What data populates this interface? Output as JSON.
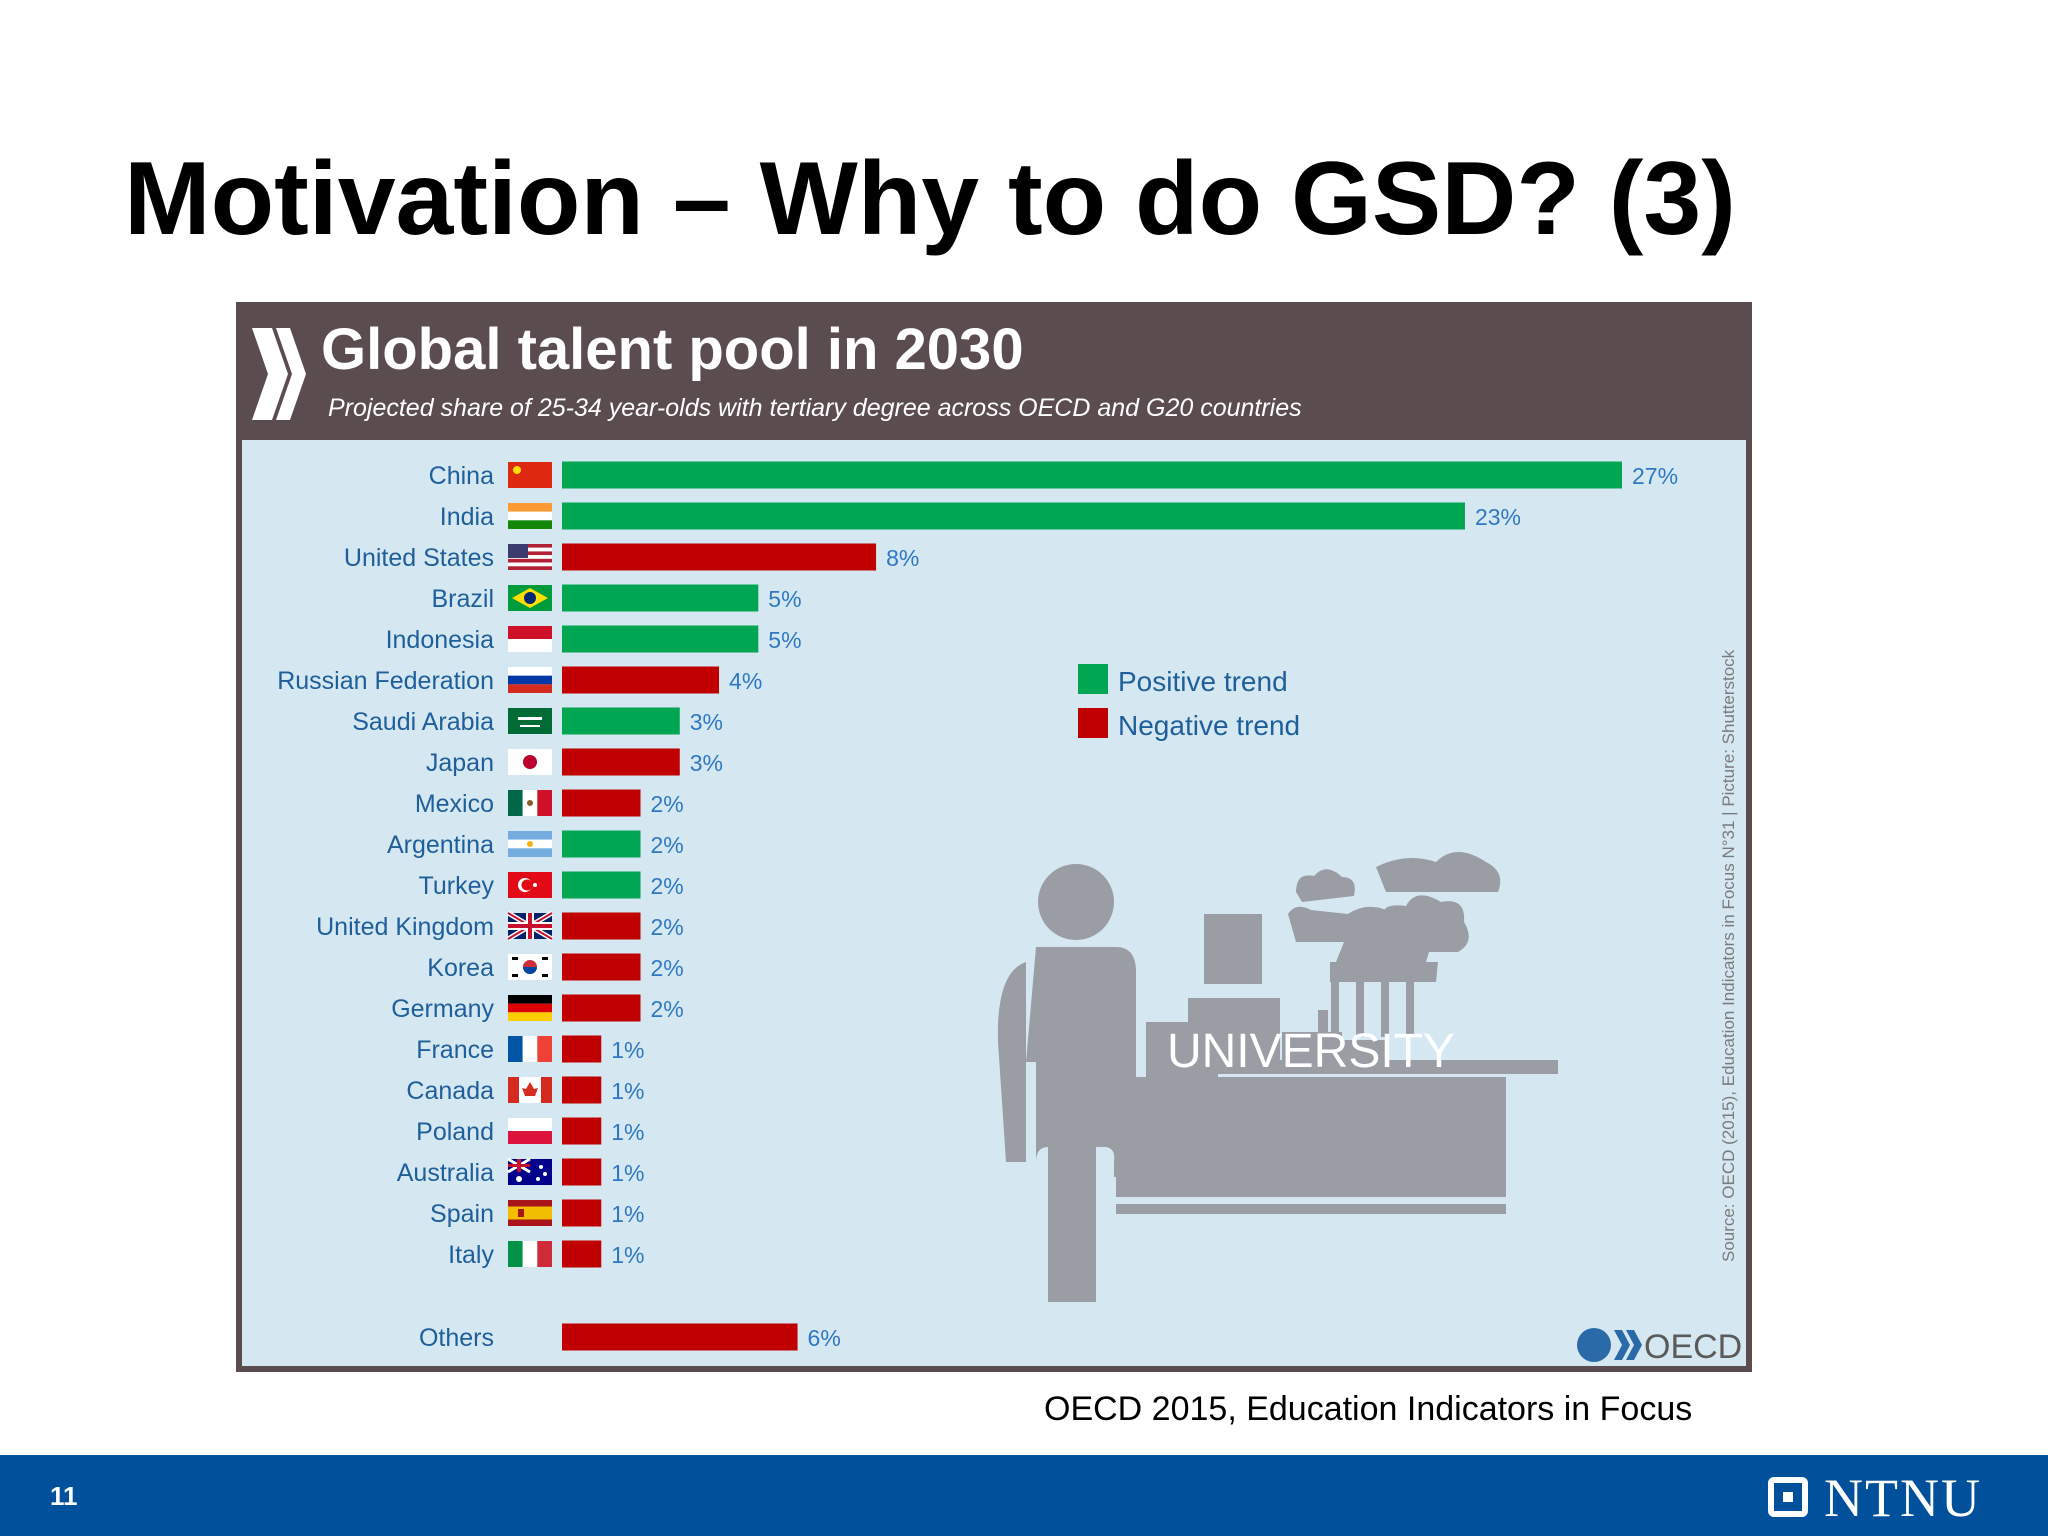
{
  "slide": {
    "title": "Motivation – Why to do GSD? (3)",
    "credit": "OECD 2015,  Education Indicators in Focus",
    "page_number": "11",
    "logo_text": "NTNU"
  },
  "colors": {
    "positive": "#00a651",
    "negative": "#c00000",
    "header_bg": "#5b4d4f",
    "chart_bg": "#d5e8f1",
    "label_text": "#1e5e9b",
    "footer": "#00509b"
  },
  "chart_data": {
    "type": "bar",
    "orientation": "horizontal",
    "title": "Global talent pool in 2030",
    "subtitle": "Projected share of 25-34 year-olds with tertiary degree across OECD and G20 countries",
    "categories": [
      "China",
      "India",
      "United States",
      "Brazil",
      "Indonesia",
      "Russian Federation",
      "Saudi Arabia",
      "Japan",
      "Mexico",
      "Argentina",
      "Turkey",
      "United Kingdom",
      "Korea",
      "Germany",
      "France",
      "Canada",
      "Poland",
      "Australia",
      "Spain",
      "Italy",
      "Others"
    ],
    "values": [
      27,
      23,
      8,
      5,
      5,
      4,
      3,
      3,
      2,
      2,
      2,
      2,
      2,
      2,
      1,
      1,
      1,
      1,
      1,
      1,
      6
    ],
    "value_labels": [
      "27%",
      "23%",
      "8%",
      "5%",
      "5%",
      "4%",
      "3%",
      "3%",
      "2%",
      "2%",
      "2%",
      "2%",
      "2%",
      "2%",
      "1%",
      "1%",
      "1%",
      "1%",
      "1%",
      "1%",
      "6%"
    ],
    "trend": [
      "positive",
      "positive",
      "negative",
      "positive",
      "positive",
      "negative",
      "positive",
      "negative",
      "negative",
      "positive",
      "positive",
      "negative",
      "negative",
      "negative",
      "negative",
      "negative",
      "negative",
      "negative",
      "negative",
      "negative",
      "negative"
    ],
    "legend": [
      {
        "name": "Positive trend",
        "key": "positive"
      },
      {
        "name": "Negative trend",
        "key": "negative"
      }
    ],
    "legend_position": "center-right",
    "source": "Source: OECD (2015), Education Indicators in Focus N°31 | Picture: Shutterstock",
    "logo_text": "OECD",
    "illustration_label": "UNIVERSITY",
    "grid": false
  }
}
